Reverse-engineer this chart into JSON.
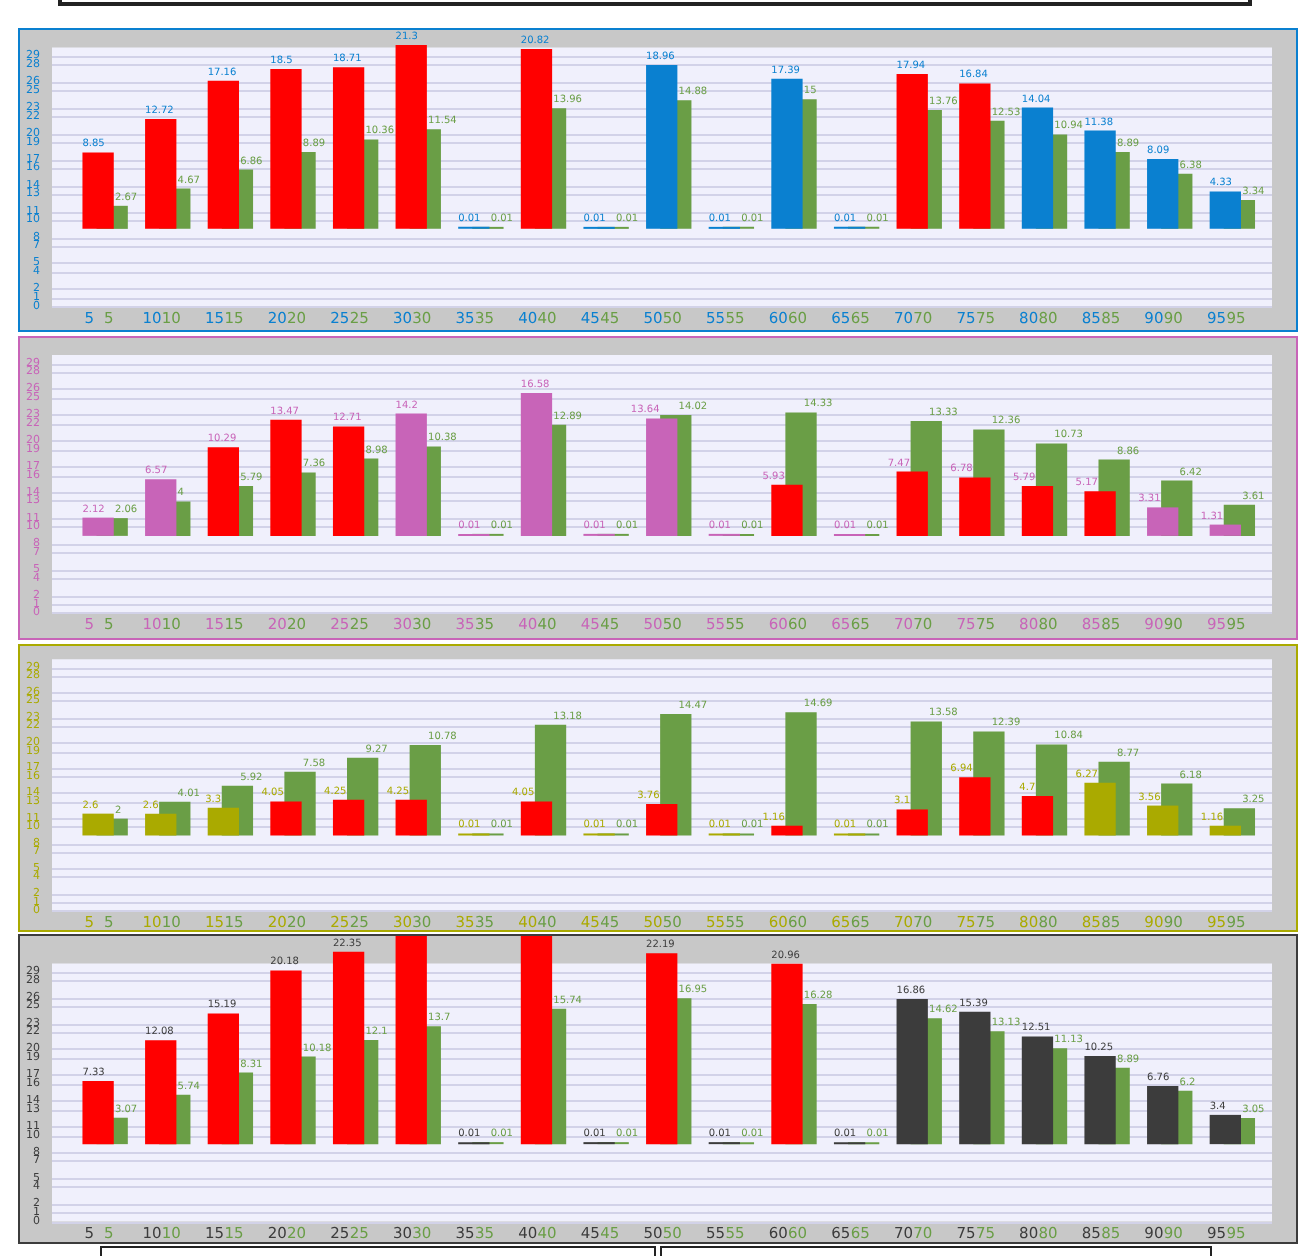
{
  "chart_data": [
    {
      "type": "bar",
      "categories": [
        "5",
        "10",
        "15",
        "20",
        "25",
        "30",
        "35",
        "40",
        "45",
        "50",
        "55",
        "60",
        "65",
        "70",
        "75",
        "80",
        "85",
        "90",
        "95"
      ],
      "ylim": [
        0,
        30
      ],
      "yticks": [
        0,
        1,
        2,
        4,
        5,
        7,
        8,
        10,
        11,
        13,
        14,
        16,
        17,
        19,
        20,
        22,
        23,
        25,
        26,
        28,
        29
      ],
      "grid": "y",
      "data_labels": true,
      "series": [
        {
          "color": "#0a80d0",
          "colors": [
            "#ff0000",
            "#ff0000",
            "#ff0000",
            "#ff0000",
            "#ff0000",
            "#ff0000",
            "#0a80d0",
            "#ff0000",
            "#0a80d0",
            "#0a80d0",
            "#0a80d0",
            "#0a80d0",
            "#0a80d0",
            "#ff0000",
            "#ff0000",
            "#0a80d0",
            "#0a80d0",
            "#0a80d0",
            "#0a80d0"
          ],
          "base": [
            9,
            9,
            9,
            9,
            9,
            9,
            9,
            9,
            9,
            9,
            9,
            9,
            9,
            9,
            9,
            9,
            9,
            9,
            9
          ],
          "values": [
            8.85,
            12.72,
            17.16,
            18.5,
            18.71,
            21.3,
            0.01,
            20.82,
            0.01,
            18.96,
            0.01,
            17.39,
            0.01,
            17.94,
            16.84,
            14.04,
            11.38,
            8.09,
            4.33
          ]
        },
        {
          "color": "#6a9e46",
          "base": [
            9,
            9,
            9,
            9,
            9,
            9,
            9,
            9,
            9,
            9,
            9,
            9,
            9,
            9,
            9,
            9,
            9,
            9,
            9
          ],
          "values": [
            2.67,
            4.67,
            6.86,
            8.89,
            10.36,
            11.54,
            0.01,
            13.96,
            0.01,
            14.88,
            0.01,
            15,
            0.01,
            13.76,
            12.53,
            10.94,
            8.89,
            6.38,
            3.34
          ]
        }
      ]
    },
    {
      "type": "bar",
      "categories": [
        "5",
        "10",
        "15",
        "20",
        "25",
        "30",
        "35",
        "40",
        "45",
        "50",
        "55",
        "60",
        "65",
        "70",
        "75",
        "80",
        "85",
        "90",
        "95"
      ],
      "ylim": [
        0,
        30
      ],
      "yticks": [
        0,
        1,
        2,
        4,
        5,
        7,
        8,
        10,
        11,
        13,
        14,
        16,
        17,
        19,
        20,
        22,
        23,
        25,
        26,
        28,
        29
      ],
      "grid": "y",
      "data_labels": true,
      "series": [
        {
          "color": "#c864b8",
          "colors": [
            "#c864b8",
            "#c864b8",
            "#ff0000",
            "#ff0000",
            "#ff0000",
            "#c864b8",
            "#c864b8",
            "#c864b8",
            "#c864b8",
            "#c864b8",
            "#c864b8",
            "#ff0000",
            "#c864b8",
            "#ff0000",
            "#ff0000",
            "#ff0000",
            "#ff0000",
            "#c864b8",
            "#c864b8"
          ],
          "base": [
            9,
            9,
            9,
            9,
            9,
            9,
            9,
            9,
            9,
            9,
            9,
            9,
            9,
            9,
            9,
            9,
            9,
            9,
            9
          ],
          "values": [
            2.12,
            6.57,
            10.29,
            13.47,
            12.71,
            14.2,
            0.01,
            16.58,
            0.01,
            13.64,
            0.01,
            5.93,
            0.01,
            7.47,
            6.78,
            5.79,
            5.17,
            3.31,
            1.31
          ]
        },
        {
          "color": "#6a9e46",
          "base": [
            9,
            9,
            9,
            9,
            9,
            9,
            9,
            9,
            9,
            9,
            9,
            9,
            9,
            9,
            9,
            9,
            9,
            9,
            9
          ],
          "values": [
            2.06,
            4,
            5.79,
            7.36,
            8.98,
            10.38,
            0.01,
            12.89,
            0.01,
            14.02,
            0.01,
            14.33,
            0.01,
            13.33,
            12.36,
            10.73,
            8.86,
            6.42,
            3.61
          ]
        }
      ]
    },
    {
      "type": "bar",
      "categories": [
        "5",
        "10",
        "15",
        "20",
        "25",
        "30",
        "35",
        "40",
        "45",
        "50",
        "55",
        "60",
        "65",
        "70",
        "75",
        "80",
        "85",
        "90",
        "95"
      ],
      "ylim": [
        0,
        30
      ],
      "yticks": [
        0,
        1,
        2,
        4,
        5,
        7,
        8,
        10,
        11,
        13,
        14,
        16,
        17,
        19,
        20,
        22,
        23,
        25,
        26,
        28,
        29
      ],
      "grid": "y",
      "data_labels": true,
      "series": [
        {
          "color": "#aaaa00",
          "colors": [
            "#aaaa00",
            "#aaaa00",
            "#aaaa00",
            "#ff0000",
            "#ff0000",
            "#ff0000",
            "#aaaa00",
            "#ff0000",
            "#aaaa00",
            "#ff0000",
            "#aaaa00",
            "#ff0000",
            "#aaaa00",
            "#ff0000",
            "#ff0000",
            "#ff0000",
            "#aaaa00",
            "#aaaa00",
            "#aaaa00"
          ],
          "base": [
            9,
            9,
            9,
            9,
            9,
            9,
            9,
            9,
            9,
            9,
            9,
            9,
            9,
            9,
            9,
            9,
            9,
            9,
            9
          ],
          "values": [
            2.6,
            2.6,
            3.3,
            4.05,
            4.25,
            4.25,
            0.01,
            4.05,
            0.01,
            3.76,
            0.01,
            1.16,
            0.01,
            3.1,
            6.94,
            4.7,
            6.27,
            3.56,
            1.16
          ]
        },
        {
          "color": "#6a9e46",
          "base": [
            9,
            9,
            9,
            9,
            9,
            9,
            9,
            9,
            9,
            9,
            9,
            9,
            9,
            9,
            9,
            9,
            9,
            9,
            9
          ],
          "values": [
            2,
            4.01,
            5.92,
            7.58,
            9.27,
            10.78,
            0.01,
            13.18,
            0.01,
            14.47,
            0.01,
            14.69,
            0.01,
            13.58,
            12.39,
            10.84,
            8.77,
            6.18,
            3.25
          ]
        }
      ]
    },
    {
      "type": "bar",
      "categories": [
        "5",
        "10",
        "15",
        "20",
        "25",
        "30",
        "35",
        "40",
        "45",
        "50",
        "55",
        "60",
        "65",
        "70",
        "75",
        "80",
        "85",
        "90",
        "95"
      ],
      "ylim": [
        0,
        30
      ],
      "yticks": [
        0,
        1,
        2,
        4,
        5,
        7,
        8,
        10,
        11,
        13,
        14,
        16,
        17,
        19,
        20,
        22,
        23,
        25,
        26,
        28,
        29
      ],
      "grid": "y",
      "series": [
        {
          "color": "#3c3c3c",
          "colors": [
            "#ff0000",
            "#ff0000",
            "#ff0000",
            "#ff0000",
            "#ff0000",
            "#ff0000",
            "#3c3c3c",
            "#ff0000",
            "#3c3c3c",
            "#ff0000",
            "#3c3c3c",
            "#ff0000",
            "#3c3c3c",
            "#3c3c3c",
            "#3c3c3c",
            "#3c3c3c",
            "#3c3c3c",
            "#3c3c3c",
            "#3c3c3c"
          ],
          "base": [
            9,
            9,
            9,
            9,
            9,
            9,
            9,
            9,
            9,
            9,
            9,
            9,
            9,
            9,
            9,
            9,
            9,
            9,
            9
          ],
          "values": [
            7.33,
            12.08,
            15.19,
            20.18,
            22.35,
            24.5,
            0.01,
            24.5,
            0.01,
            22.19,
            0.01,
            20.96,
            0.01,
            16.86,
            15.39,
            12.51,
            10.25,
            6.76,
            3.4
          ],
          "value_labels": [
            "7.33",
            "12.08",
            "15.19",
            "20.18",
            "22.35",
            null,
            "0.01",
            null,
            "0.01",
            "22.19",
            "0.01",
            "20.96",
            "0.01",
            "16.86",
            "15.39",
            "12.51",
            "10.25",
            "6.76",
            "3.4"
          ]
        },
        {
          "color": "#6a9e46",
          "base": [
            9,
            9,
            9,
            9,
            9,
            9,
            9,
            9,
            9,
            9,
            9,
            9,
            9,
            9,
            9,
            9,
            9,
            9,
            9
          ],
          "values": [
            3.07,
            5.74,
            8.31,
            10.18,
            12.1,
            13.7,
            0.01,
            15.74,
            0.01,
            16.95,
            0.01,
            16.28,
            0.01,
            14.62,
            13.13,
            11.13,
            8.89,
            6.2,
            3.05
          ],
          "value_labels": [
            "3.07",
            "5.74",
            "8.31",
            "10.18",
            "12.1",
            "13.7",
            "0.01",
            "15.74",
            "0.01",
            "16.95",
            "0.01",
            "16.28",
            "0.01",
            "14.62",
            "13.13",
            "11.13",
            "8.89",
            "6.2",
            "3.05"
          ]
        }
      ]
    }
  ]
}
